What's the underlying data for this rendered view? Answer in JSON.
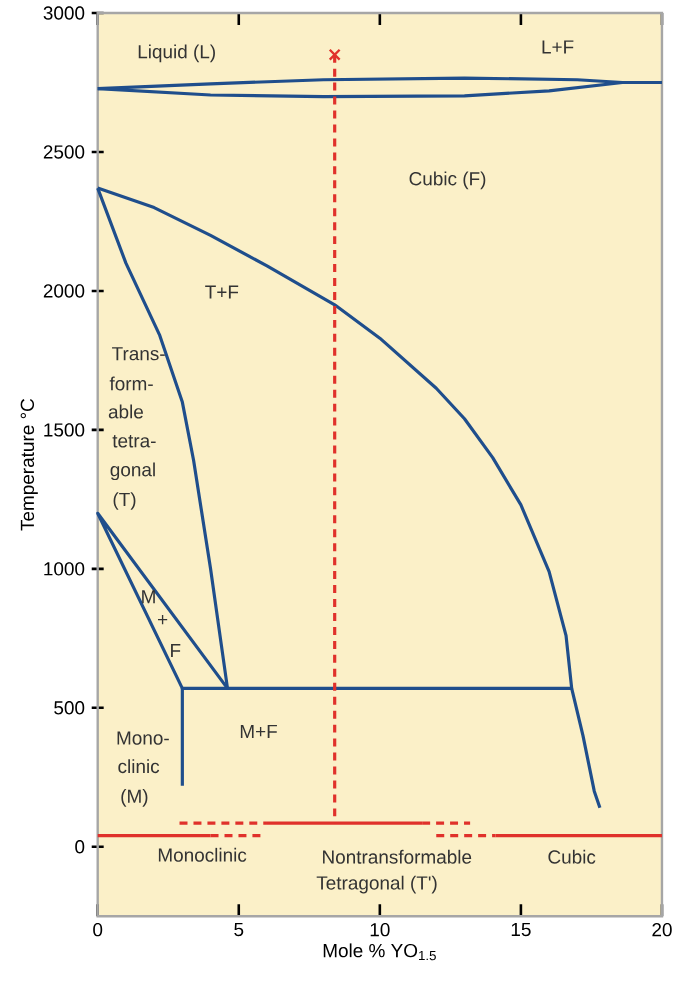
{
  "chart_data": {
    "type": "line",
    "xlabel": "Mole % YO$_{1.5}$",
    "ylabel": "Temperature °C",
    "xlim": [
      0,
      20
    ],
    "ylim": [
      -250,
      3000
    ],
    "xticks": [
      0,
      5,
      10,
      15,
      20
    ],
    "yticks": [
      0,
      500,
      1000,
      1500,
      2000,
      2500,
      3000
    ],
    "grid": false,
    "series": [
      {
        "color": "#1f4e8c",
        "line_style": "solid",
        "x": [
          0,
          4,
          8,
          13,
          17,
          18.6,
          20
        ],
        "values": [
          2728,
          2745,
          2760,
          2766,
          2760,
          2750,
          2750
        ]
      },
      {
        "color": "#1f4e8c",
        "line_style": "solid",
        "x": [
          0,
          4,
          8,
          13,
          16,
          18.6
        ],
        "values": [
          2728,
          2705,
          2699,
          2702,
          2720,
          2750
        ]
      },
      {
        "color": "#1f4e8c",
        "line_style": "solid",
        "x": [
          0,
          2,
          4,
          6,
          8.4,
          10,
          12,
          13,
          14,
          15,
          16,
          16.6,
          16.8,
          17.2,
          17.6,
          17.8
        ],
        "values": [
          2370,
          2300,
          2200,
          2090,
          1950,
          1830,
          1650,
          1540,
          1400,
          1230,
          990,
          760,
          570,
          400,
          200,
          140
        ]
      },
      {
        "color": "#1f4e8c",
        "line_style": "solid",
        "x": [
          0,
          1,
          2.2,
          3,
          3.4,
          4,
          4.6
        ],
        "values": [
          2370,
          2100,
          1840,
          1600,
          1390,
          1000,
          570
        ]
      },
      {
        "color": "#1f4e8c",
        "line_style": "solid",
        "x": [
          3,
          0,
          4.6
        ],
        "values": [
          570,
          1200,
          570
        ]
      },
      {
        "color": "#1f4e8c",
        "line_style": "solid",
        "x": [
          3,
          3,
          16.8
        ],
        "values": [
          220,
          570,
          570
        ]
      },
      {
        "color": "#e0312b",
        "line_style": "solid",
        "x": [
          0,
          4
        ],
        "values": [
          40,
          40
        ]
      },
      {
        "color": "#e0312b",
        "line_style": "dashed",
        "x": [
          4,
          5.8
        ],
        "values": [
          40,
          40
        ]
      },
      {
        "color": "#e0312b",
        "line_style": "dashed",
        "x": [
          2.9,
          6
        ],
        "values": [
          85,
          85
        ]
      },
      {
        "color": "#e0312b",
        "line_style": "solid",
        "x": [
          6,
          11.5
        ],
        "values": [
          85,
          85
        ]
      },
      {
        "color": "#e0312b",
        "line_style": "dashed",
        "x": [
          11.5,
          13.2
        ],
        "values": [
          85,
          85
        ]
      },
      {
        "color": "#e0312b",
        "line_style": "dashed",
        "x": [
          12,
          14.1
        ],
        "values": [
          40,
          40
        ]
      },
      {
        "color": "#e0312b",
        "line_style": "solid",
        "x": [
          14.1,
          20
        ],
        "values": [
          40,
          40
        ]
      },
      {
        "color": "#e0312b",
        "line_style": "dashed",
        "x": [
          8.4,
          8.4
        ],
        "values": [
          2850,
          85
        ]
      },
      {
        "type": "scatter",
        "color": "#e0312b",
        "marker": "cross",
        "x": [
          8.4
        ],
        "values": [
          2850
        ]
      }
    ],
    "annotations": [
      "Liquid (L)",
      "L+F",
      "Cubic (F)",
      "T+F",
      "Trans-",
      "form-",
      "able",
      "tetra-",
      "gonal",
      "(T)",
      "M",
      "+",
      "F",
      "M+F",
      "Mono-",
      "clinic",
      "(M)",
      "Monoclinic",
      "Nontransformable",
      "Tetragonal (T')",
      "Cubic"
    ]
  }
}
